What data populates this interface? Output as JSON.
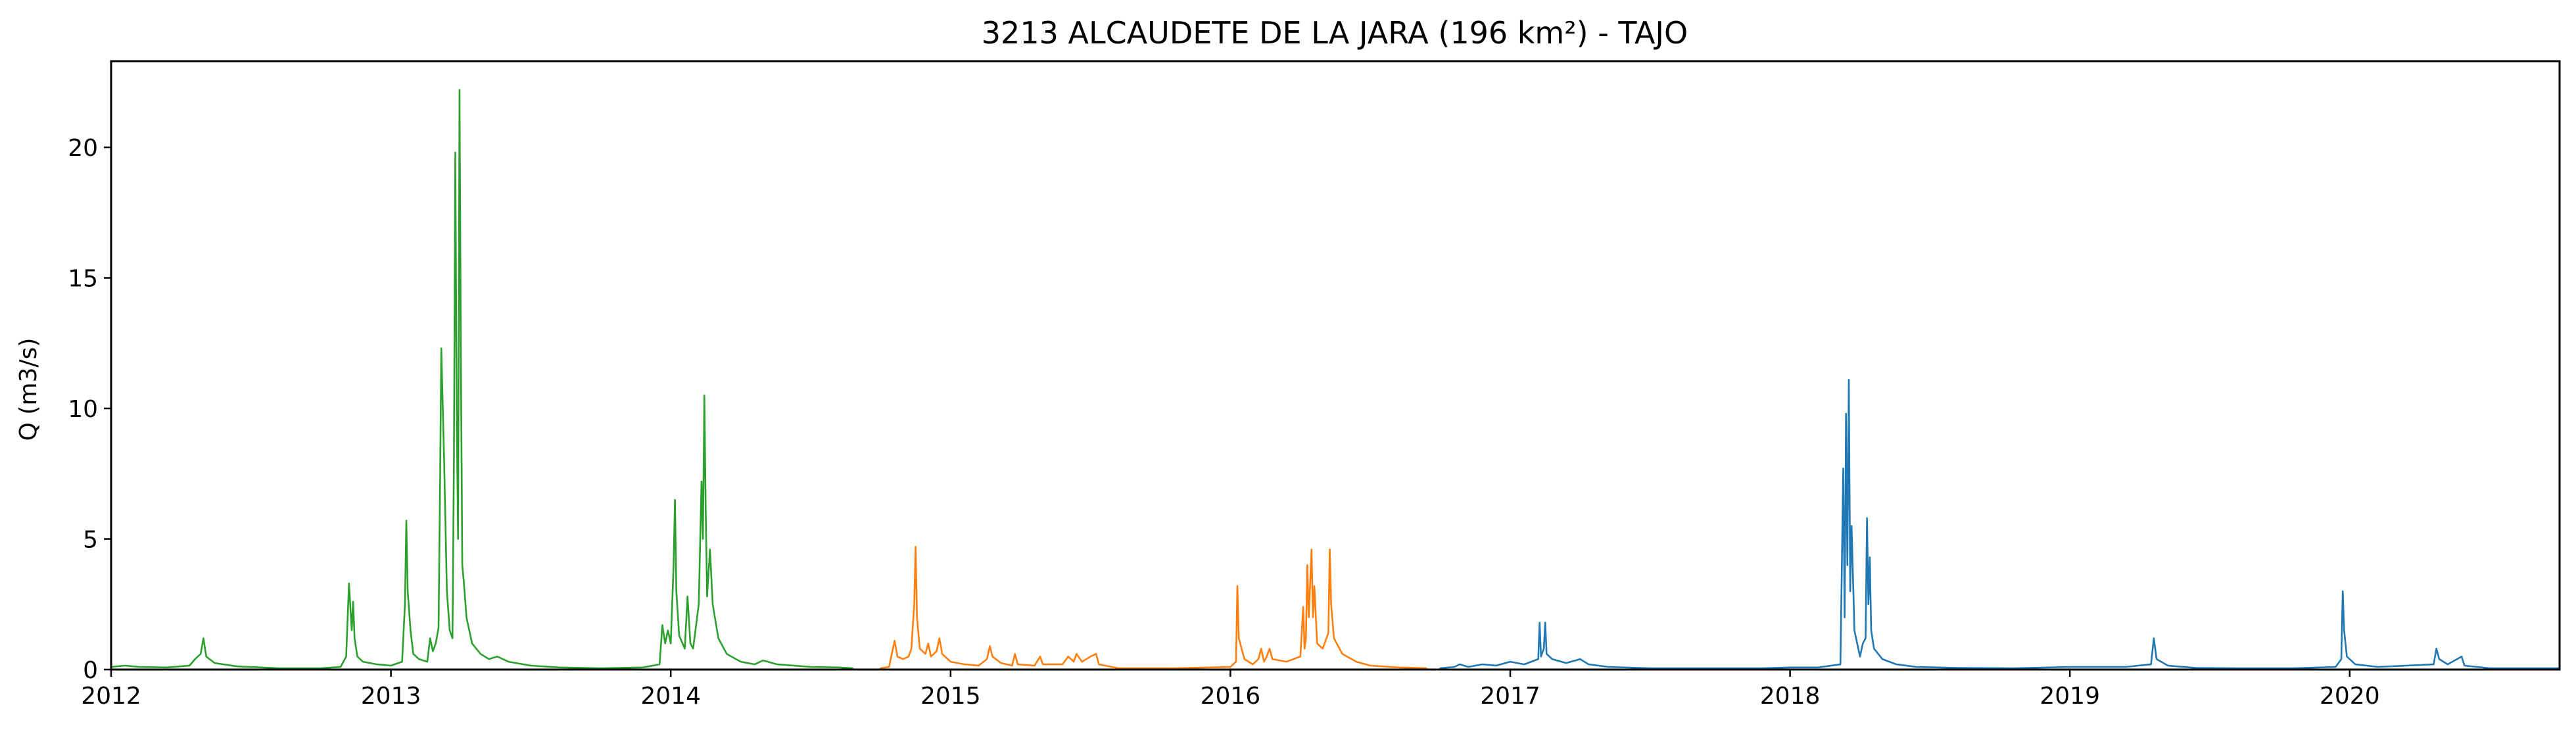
{
  "chart_data": {
    "type": "line",
    "title": "3213 ALCAUDETE DE LA JARA (196 km²) - TAJO",
    "xlabel": "",
    "ylabel": "Q (m3/s)",
    "xlim": [
      2012.0,
      2020.75
    ],
    "ylim": [
      0,
      23.3
    ],
    "xticks": [
      2012,
      2013,
      2014,
      2015,
      2016,
      2017,
      2018,
      2019,
      2020
    ],
    "xtick_labels": [
      "2012",
      "2013",
      "2014",
      "2015",
      "2016",
      "2017",
      "2018",
      "2019",
      "2020"
    ],
    "yticks": [
      0,
      5,
      10,
      15,
      20
    ],
    "ytick_labels": [
      "0",
      "5",
      "10",
      "15",
      "20"
    ],
    "grid": false,
    "series": [
      {
        "color": "#2ca02c",
        "points": [
          [
            2012.0,
            0.1
          ],
          [
            2012.05,
            0.15
          ],
          [
            2012.1,
            0.1
          ],
          [
            2012.2,
            0.08
          ],
          [
            2012.28,
            0.15
          ],
          [
            2012.3,
            0.4
          ],
          [
            2012.32,
            0.6
          ],
          [
            2012.33,
            1.2
          ],
          [
            2012.34,
            0.5
          ],
          [
            2012.37,
            0.25
          ],
          [
            2012.45,
            0.12
          ],
          [
            2012.6,
            0.05
          ],
          [
            2012.75,
            0.05
          ],
          [
            2012.82,
            0.1
          ],
          [
            2012.84,
            0.5
          ],
          [
            2012.85,
            3.3
          ],
          [
            2012.86,
            1.5
          ],
          [
            2012.865,
            2.6
          ],
          [
            2012.87,
            1.2
          ],
          [
            2012.88,
            0.5
          ],
          [
            2012.9,
            0.3
          ],
          [
            2012.95,
            0.2
          ],
          [
            2013.0,
            0.15
          ],
          [
            2013.04,
            0.3
          ],
          [
            2013.05,
            2.5
          ],
          [
            2013.055,
            5.7
          ],
          [
            2013.06,
            3.0
          ],
          [
            2013.07,
            1.5
          ],
          [
            2013.08,
            0.6
          ],
          [
            2013.1,
            0.4
          ],
          [
            2013.13,
            0.3
          ],
          [
            2013.14,
            1.2
          ],
          [
            2013.15,
            0.7
          ],
          [
            2013.16,
            1.0
          ],
          [
            2013.17,
            1.6
          ],
          [
            2013.175,
            6.5
          ],
          [
            2013.18,
            12.3
          ],
          [
            2013.19,
            8.0
          ],
          [
            2013.2,
            3.0
          ],
          [
            2013.21,
            1.5
          ],
          [
            2013.22,
            1.2
          ],
          [
            2013.225,
            8.0
          ],
          [
            2013.23,
            19.8
          ],
          [
            2013.235,
            10.0
          ],
          [
            2013.24,
            5.0
          ],
          [
            2013.245,
            22.2
          ],
          [
            2013.25,
            12.0
          ],
          [
            2013.255,
            4.0
          ],
          [
            2013.26,
            3.4
          ],
          [
            2013.27,
            2.0
          ],
          [
            2013.29,
            1.0
          ],
          [
            2013.32,
            0.6
          ],
          [
            2013.35,
            0.4
          ],
          [
            2013.38,
            0.5
          ],
          [
            2013.42,
            0.3
          ],
          [
            2013.5,
            0.15
          ],
          [
            2013.6,
            0.08
          ],
          [
            2013.75,
            0.05
          ],
          [
            2013.9,
            0.08
          ],
          [
            2013.96,
            0.2
          ],
          [
            2013.97,
            1.7
          ],
          [
            2013.98,
            1.0
          ],
          [
            2013.99,
            1.5
          ],
          [
            2014.0,
            1.0
          ],
          [
            2014.01,
            4.0
          ],
          [
            2014.015,
            6.5
          ],
          [
            2014.02,
            3.0
          ],
          [
            2014.03,
            1.3
          ],
          [
            2014.05,
            0.8
          ],
          [
            2014.06,
            2.8
          ],
          [
            2014.07,
            1.0
          ],
          [
            2014.08,
            0.8
          ],
          [
            2014.1,
            2.5
          ],
          [
            2014.11,
            7.2
          ],
          [
            2014.115,
            5.0
          ],
          [
            2014.12,
            10.5
          ],
          [
            2014.125,
            6.0
          ],
          [
            2014.13,
            2.8
          ],
          [
            2014.14,
            4.6
          ],
          [
            2014.15,
            2.5
          ],
          [
            2014.17,
            1.2
          ],
          [
            2014.2,
            0.6
          ],
          [
            2014.25,
            0.3
          ],
          [
            2014.3,
            0.2
          ],
          [
            2014.33,
            0.35
          ],
          [
            2014.38,
            0.2
          ],
          [
            2014.5,
            0.1
          ],
          [
            2014.6,
            0.08
          ],
          [
            2014.65,
            0.05
          ]
        ]
      },
      {
        "color": "#ff7f0e",
        "points": [
          [
            2014.75,
            0.05
          ],
          [
            2014.78,
            0.1
          ],
          [
            2014.79,
            0.6
          ],
          [
            2014.8,
            1.1
          ],
          [
            2014.81,
            0.5
          ],
          [
            2014.83,
            0.4
          ],
          [
            2014.85,
            0.5
          ],
          [
            2014.86,
            0.8
          ],
          [
            2014.87,
            2.5
          ],
          [
            2014.875,
            4.7
          ],
          [
            2014.88,
            2.0
          ],
          [
            2014.89,
            0.8
          ],
          [
            2014.91,
            0.6
          ],
          [
            2014.92,
            1.0
          ],
          [
            2014.93,
            0.5
          ],
          [
            2014.95,
            0.7
          ],
          [
            2014.96,
            1.2
          ],
          [
            2014.97,
            0.6
          ],
          [
            2015.0,
            0.3
          ],
          [
            2015.05,
            0.2
          ],
          [
            2015.1,
            0.15
          ],
          [
            2015.13,
            0.4
          ],
          [
            2015.14,
            0.9
          ],
          [
            2015.15,
            0.5
          ],
          [
            2015.18,
            0.25
          ],
          [
            2015.22,
            0.15
          ],
          [
            2015.23,
            0.6
          ],
          [
            2015.24,
            0.2
          ],
          [
            2015.3,
            0.15
          ],
          [
            2015.32,
            0.5
          ],
          [
            2015.33,
            0.2
          ],
          [
            2015.4,
            0.2
          ],
          [
            2015.42,
            0.5
          ],
          [
            2015.44,
            0.3
          ],
          [
            2015.45,
            0.6
          ],
          [
            2015.47,
            0.3
          ],
          [
            2015.5,
            0.5
          ],
          [
            2015.52,
            0.6
          ],
          [
            2015.53,
            0.2
          ],
          [
            2015.6,
            0.05
          ],
          [
            2015.8,
            0.05
          ],
          [
            2016.0,
            0.1
          ],
          [
            2016.02,
            0.3
          ],
          [
            2016.025,
            3.2
          ],
          [
            2016.03,
            1.2
          ],
          [
            2016.05,
            0.4
          ],
          [
            2016.08,
            0.2
          ],
          [
            2016.1,
            0.4
          ],
          [
            2016.11,
            0.8
          ],
          [
            2016.12,
            0.3
          ],
          [
            2016.13,
            0.5
          ],
          [
            2016.14,
            0.8
          ],
          [
            2016.15,
            0.4
          ],
          [
            2016.2,
            0.3
          ],
          [
            2016.25,
            0.5
          ],
          [
            2016.26,
            2.4
          ],
          [
            2016.265,
            0.8
          ],
          [
            2016.27,
            1.2
          ],
          [
            2016.275,
            4.0
          ],
          [
            2016.28,
            2.0
          ],
          [
            2016.29,
            4.6
          ],
          [
            2016.295,
            2.0
          ],
          [
            2016.3,
            3.2
          ],
          [
            2016.31,
            1.0
          ],
          [
            2016.33,
            0.8
          ],
          [
            2016.35,
            1.4
          ],
          [
            2016.355,
            4.6
          ],
          [
            2016.36,
            2.5
          ],
          [
            2016.37,
            1.2
          ],
          [
            2016.4,
            0.6
          ],
          [
            2016.45,
            0.3
          ],
          [
            2016.5,
            0.15
          ],
          [
            2016.6,
            0.08
          ],
          [
            2016.7,
            0.05
          ]
        ]
      },
      {
        "color": "#1f77b4",
        "points": [
          [
            2016.75,
            0.05
          ],
          [
            2016.8,
            0.1
          ],
          [
            2016.82,
            0.2
          ],
          [
            2016.85,
            0.1
          ],
          [
            2016.9,
            0.2
          ],
          [
            2016.95,
            0.15
          ],
          [
            2017.0,
            0.3
          ],
          [
            2017.05,
            0.2
          ],
          [
            2017.1,
            0.4
          ],
          [
            2017.105,
            1.8
          ],
          [
            2017.11,
            0.5
          ],
          [
            2017.12,
            0.8
          ],
          [
            2017.125,
            1.8
          ],
          [
            2017.13,
            0.6
          ],
          [
            2017.15,
            0.4
          ],
          [
            2017.2,
            0.25
          ],
          [
            2017.25,
            0.4
          ],
          [
            2017.28,
            0.2
          ],
          [
            2017.35,
            0.1
          ],
          [
            2017.5,
            0.05
          ],
          [
            2017.7,
            0.05
          ],
          [
            2017.9,
            0.05
          ],
          [
            2018.0,
            0.08
          ],
          [
            2018.1,
            0.08
          ],
          [
            2018.18,
            0.2
          ],
          [
            2018.19,
            7.7
          ],
          [
            2018.195,
            2.0
          ],
          [
            2018.2,
            9.8
          ],
          [
            2018.205,
            4.0
          ],
          [
            2018.21,
            11.1
          ],
          [
            2018.215,
            3.0
          ],
          [
            2018.22,
            5.5
          ],
          [
            2018.23,
            1.5
          ],
          [
            2018.24,
            1.0
          ],
          [
            2018.25,
            0.5
          ],
          [
            2018.26,
            1.0
          ],
          [
            2018.27,
            1.2
          ],
          [
            2018.275,
            5.8
          ],
          [
            2018.28,
            2.5
          ],
          [
            2018.285,
            4.3
          ],
          [
            2018.29,
            1.5
          ],
          [
            2018.3,
            0.8
          ],
          [
            2018.33,
            0.4
          ],
          [
            2018.38,
            0.2
          ],
          [
            2018.45,
            0.1
          ],
          [
            2018.6,
            0.06
          ],
          [
            2018.8,
            0.05
          ],
          [
            2019.0,
            0.1
          ],
          [
            2019.2,
            0.1
          ],
          [
            2019.29,
            0.2
          ],
          [
            2019.3,
            1.2
          ],
          [
            2019.31,
            0.4
          ],
          [
            2019.35,
            0.15
          ],
          [
            2019.45,
            0.06
          ],
          [
            2019.6,
            0.05
          ],
          [
            2019.8,
            0.05
          ],
          [
            2019.95,
            0.1
          ],
          [
            2019.97,
            0.4
          ],
          [
            2019.975,
            3.0
          ],
          [
            2019.98,
            1.5
          ],
          [
            2019.99,
            0.5
          ],
          [
            2020.02,
            0.2
          ],
          [
            2020.1,
            0.1
          ],
          [
            2020.3,
            0.2
          ],
          [
            2020.31,
            0.8
          ],
          [
            2020.32,
            0.4
          ],
          [
            2020.35,
            0.2
          ],
          [
            2020.4,
            0.5
          ],
          [
            2020.41,
            0.15
          ],
          [
            2020.5,
            0.05
          ],
          [
            2020.6,
            0.05
          ],
          [
            2020.75,
            0.05
          ]
        ]
      }
    ]
  }
}
